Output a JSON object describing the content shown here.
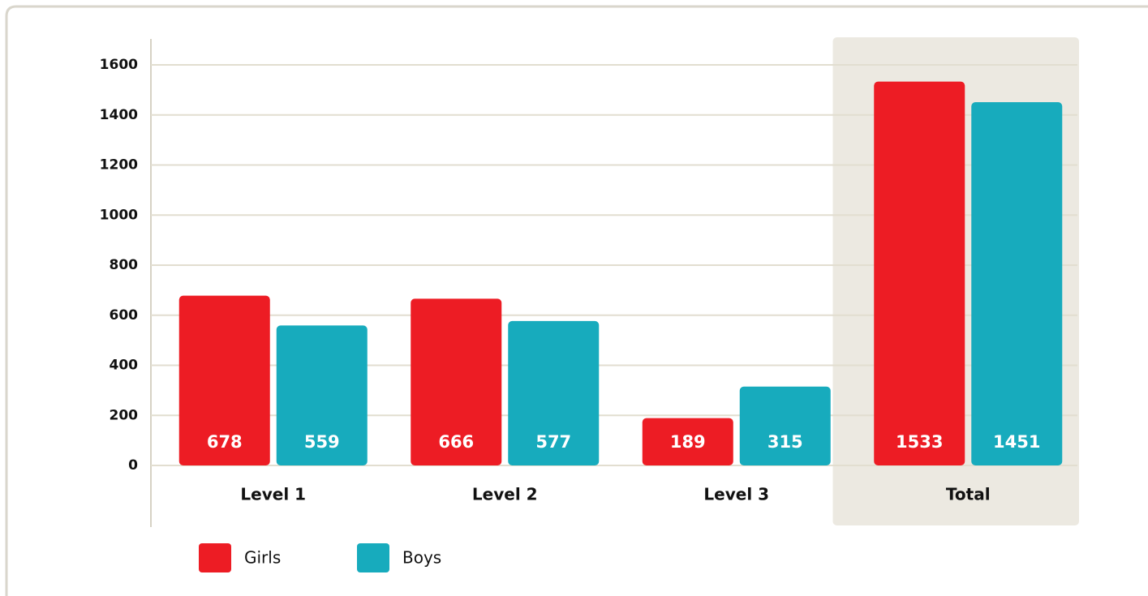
{
  "chart_data": {
    "type": "bar",
    "categories": [
      "Level 1",
      "Level 2",
      "Level 3",
      "Total"
    ],
    "series": [
      {
        "name": "Girls",
        "color": "#ed1c24",
        "values": [
          678,
          666,
          189,
          1533
        ]
      },
      {
        "name": "Boys",
        "color": "#17abbd",
        "values": [
          559,
          577,
          315,
          1451
        ]
      }
    ],
    "ylim": [
      0,
      1600
    ],
    "yticks": [
      0,
      200,
      400,
      600,
      800,
      1000,
      1200,
      1400,
      1600
    ],
    "grid": true,
    "legend": "bottom"
  }
}
